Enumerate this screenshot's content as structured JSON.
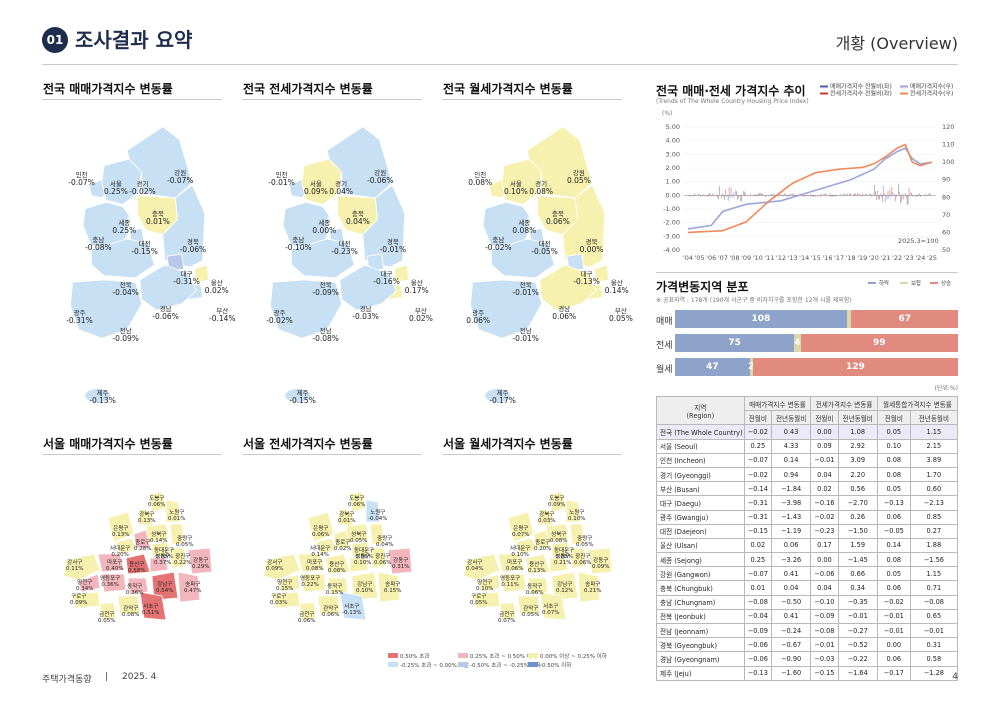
{
  "header": {
    "badge": "01",
    "title": "조사결과 요약",
    "right": "개황 (Overview)"
  },
  "maps": {
    "sale_title": "전국 매매가격지수 변동률",
    "jeonse_title": "전국 전세가격지수 변동률",
    "rent_title": "전국 월세가격지수 변동률",
    "seoul_sale_title": "서울 매매가격지수 변동률",
    "seoul_jeonse_title": "서울 전세가격지수 변동률",
    "seoul_rent_title": "서울 월세가격지수 변동률",
    "sale": [
      {
        "n": "인천",
        "v": "-0.07%"
      },
      {
        "n": "서울",
        "v": "0.25%"
      },
      {
        "n": "경기",
        "v": "-0.02%"
      },
      {
        "n": "강원",
        "v": "-0.07%"
      },
      {
        "n": "세종",
        "v": "0.25%"
      },
      {
        "n": "충북",
        "v": "0.01%"
      },
      {
        "n": "충남",
        "v": "-0.08%"
      },
      {
        "n": "대전",
        "v": "-0.15%"
      },
      {
        "n": "경북",
        "v": "-0.06%"
      },
      {
        "n": "대구",
        "v": "-0.31%"
      },
      {
        "n": "전북",
        "v": "-0.04%"
      },
      {
        "n": "울산",
        "v": "0.02%"
      },
      {
        "n": "부산",
        "v": "-0.14%"
      },
      {
        "n": "경남",
        "v": "-0.06%"
      },
      {
        "n": "광주",
        "v": "-0.31%"
      },
      {
        "n": "전남",
        "v": "-0.09%"
      },
      {
        "n": "제주",
        "v": "-0.13%"
      }
    ],
    "jeonse": [
      {
        "n": "인천",
        "v": "-0.01%"
      },
      {
        "n": "서울",
        "v": "0.09%"
      },
      {
        "n": "경기",
        "v": "0.04%"
      },
      {
        "n": "강원",
        "v": "-0.06%"
      },
      {
        "n": "세종",
        "v": "0.00%"
      },
      {
        "n": "충북",
        "v": "0.04%"
      },
      {
        "n": "충남",
        "v": "-0.10%"
      },
      {
        "n": "대전",
        "v": "-0.23%"
      },
      {
        "n": "경북",
        "v": "-0.01%"
      },
      {
        "n": "대구",
        "v": "-0.16%"
      },
      {
        "n": "전북",
        "v": "-0.09%"
      },
      {
        "n": "울산",
        "v": "0.17%"
      },
      {
        "n": "부산",
        "v": "0.02%"
      },
      {
        "n": "경남",
        "v": "-0.03%"
      },
      {
        "n": "광주",
        "v": "-0.02%"
      },
      {
        "n": "전남",
        "v": "-0.08%"
      },
      {
        "n": "제주",
        "v": "-0.15%"
      }
    ],
    "rent": [
      {
        "n": "인천",
        "v": "0.08%"
      },
      {
        "n": "서울",
        "v": "0.10%"
      },
      {
        "n": "경기",
        "v": "0.08%"
      },
      {
        "n": "강원",
        "v": "0.05%"
      },
      {
        "n": "세종",
        "v": "0.08%"
      },
      {
        "n": "충북",
        "v": "0.06%"
      },
      {
        "n": "충남",
        "v": "-0.02%"
      },
      {
        "n": "대전",
        "v": "-0.05%"
      },
      {
        "n": "경북",
        "v": "0.00%"
      },
      {
        "n": "대구",
        "v": "-0.13%"
      },
      {
        "n": "전북",
        "v": "-0.01%"
      },
      {
        "n": "울산",
        "v": "0.14%"
      },
      {
        "n": "부산",
        "v": "0.05%"
      },
      {
        "n": "경남",
        "v": "0.06%"
      },
      {
        "n": "광주",
        "v": "0.06%"
      },
      {
        "n": "전남",
        "v": "-0.01%"
      },
      {
        "n": "제주",
        "v": "-0.17%"
      }
    ],
    "seoul_sale": [
      {
        "n": "도봉구",
        "v": "0.06%"
      },
      {
        "n": "노원구",
        "v": "0.01%"
      },
      {
        "n": "강북구",
        "v": "0.13%"
      },
      {
        "n": "은평구",
        "v": "0.13%"
      },
      {
        "n": "성북구",
        "v": "0.14%"
      },
      {
        "n": "중랑구",
        "v": "0.05%"
      },
      {
        "n": "서대문구",
        "v": "0.20%"
      },
      {
        "n": "종로구",
        "v": "0.28%"
      },
      {
        "n": "동대문구",
        "v": "0.08%"
      },
      {
        "n": "강서구",
        "v": "0.11%"
      },
      {
        "n": "마포구",
        "v": "0.40%"
      },
      {
        "n": "용산구",
        "v": "0.58%"
      },
      {
        "n": "성동구",
        "v": "0.37%"
      },
      {
        "n": "광진구",
        "v": "0.22%"
      },
      {
        "n": "강동구",
        "v": "0.29%"
      },
      {
        "n": "양천구",
        "v": "0.34%"
      },
      {
        "n": "영등포구",
        "v": "0.36%"
      },
      {
        "n": "동작구",
        "v": "0.36%"
      },
      {
        "n": "강남구",
        "v": "0.54%"
      },
      {
        "n": "송파구",
        "v": "0.47%"
      },
      {
        "n": "구로구",
        "v": "0.09%"
      },
      {
        "n": "금천구",
        "v": "0.05%"
      },
      {
        "n": "관악구",
        "v": "0.08%"
      },
      {
        "n": "서초구",
        "v": "0.51%"
      }
    ],
    "seoul_jeonse": [
      {
        "n": "도봉구",
        "v": "0.06%"
      },
      {
        "n": "노원구",
        "v": "-0.04%"
      },
      {
        "n": "강북구",
        "v": "0.01%"
      },
      {
        "n": "은평구",
        "v": "0.06%"
      },
      {
        "n": "성북구",
        "v": "0.05%"
      },
      {
        "n": "중랑구",
        "v": "0.04%"
      },
      {
        "n": "서대문구",
        "v": "0.14%"
      },
      {
        "n": "종로구",
        "v": "0.02%"
      },
      {
        "n": "동대문구",
        "v": "0.06%"
      },
      {
        "n": "강서구",
        "v": "0.09%"
      },
      {
        "n": "마포구",
        "v": "0.08%"
      },
      {
        "n": "용산구",
        "v": "0.08%"
      },
      {
        "n": "성동구",
        "v": "0.10%"
      },
      {
        "n": "광진구",
        "v": "0.06%"
      },
      {
        "n": "강동구",
        "v": "0.31%"
      },
      {
        "n": "양천구",
        "v": "0.15%"
      },
      {
        "n": "영등포구",
        "v": "0.22%"
      },
      {
        "n": "동작구",
        "v": "0.15%"
      },
      {
        "n": "강남구",
        "v": "0.10%"
      },
      {
        "n": "송파구",
        "v": "0.15%"
      },
      {
        "n": "구로구",
        "v": "0.03%"
      },
      {
        "n": "금천구",
        "v": "0.06%"
      },
      {
        "n": "관악구",
        "v": "0.06%"
      },
      {
        "n": "서초구",
        "v": "-0.13%"
      }
    ],
    "seoul_rent": [
      {
        "n": "도봉구",
        "v": "0.09%"
      },
      {
        "n": "노원구",
        "v": "0.10%"
      },
      {
        "n": "강북구",
        "v": "0.03%"
      },
      {
        "n": "은평구",
        "v": "0.07%"
      },
      {
        "n": "성북구",
        "v": "0.08%"
      },
      {
        "n": "중랑구",
        "v": "0.05%"
      },
      {
        "n": "서대문구",
        "v": "0.10%"
      },
      {
        "n": "종로구",
        "v": "0.20%"
      },
      {
        "n": "동대문구",
        "v": "0.08%"
      },
      {
        "n": "강서구",
        "v": "0.04%"
      },
      {
        "n": "마포구",
        "v": "0.06%"
      },
      {
        "n": "용산구",
        "v": "0.13%"
      },
      {
        "n": "성동구",
        "v": "0.21%"
      },
      {
        "n": "광진구",
        "v": "0.06%"
      },
      {
        "n": "강동구",
        "v": "0.09%"
      },
      {
        "n": "양천구",
        "v": "0.10%"
      },
      {
        "n": "영등포구",
        "v": "0.11%"
      },
      {
        "n": "동작구",
        "v": "0.06%"
      },
      {
        "n": "강남구",
        "v": "0.12%"
      },
      {
        "n": "송파구",
        "v": "0.21%"
      },
      {
        "n": "구로구",
        "v": "0.05%"
      },
      {
        "n": "금천구",
        "v": "0.07%"
      },
      {
        "n": "관악구",
        "v": "0.05%"
      },
      {
        "n": "서초구",
        "v": "0.07%"
      }
    ],
    "legend": [
      "0.50% 초과",
      "0.25% 초과 ~ 0.50% 이하",
      "0.00% 이상 ~ 0.25% 이하",
      "-0.25% 초과 ~ 0.00% 미만",
      "-0.50% 초과 ~ -0.25% 이하",
      "-0.50% 이하"
    ],
    "legend_colors": [
      "#e57373",
      "#f4b6bd",
      "#f6f1ae",
      "#c8e0f4",
      "#b9c8ea",
      "#6f93d0"
    ]
  },
  "trend": {
    "title": "전국 매매·전세 가격지수 추이",
    "subtitle": "(Trends of The Whole Country Housing Price Index)",
    "unit": "(%)",
    "note": "2025.3=100",
    "legend": [
      "매매가격지수 전월비(좌)",
      "매매가격지수(우)",
      "전세가격지수 전월비(좌)",
      "전세가격지수(우)"
    ],
    "colors": [
      "#4a5ea8",
      "#9aa6dc",
      "#c0392b",
      "#f08a5d"
    ],
    "left_ticks": [
      "5.00",
      "4.00",
      "3.00",
      "2.00",
      "1.00",
      "0.00",
      "-1.00",
      "-2.00",
      "-3.00",
      "-4.00"
    ],
    "right_ticks": [
      "120",
      "110",
      "100",
      "90",
      "80",
      "70",
      "60",
      "50"
    ],
    "x_ticks": [
      "'04",
      "'05",
      "'06",
      "'07",
      "'08",
      "'09",
      "'10",
      "'11",
      "'12",
      "'13",
      "'14",
      "'15",
      "'16",
      "'17",
      "'18",
      "'19",
      "'20",
      "'21",
      "'22",
      "'23",
      "'24",
      "'25"
    ]
  },
  "distribution": {
    "title": "가격변동지역 분포",
    "note": "※ 공표지역 : 178개 (190개 시군구 중 비자치구를 포함한 12개 시를 제외함)",
    "legend": [
      "하락",
      "보합",
      "상승"
    ],
    "colors": [
      "#8ea3c9",
      "#d8d8a8",
      "#e08a80"
    ],
    "rows": [
      {
        "label": "매매",
        "down": 108,
        "flat": 3,
        "up": 67,
        "down_t": "108",
        "flat_t": "",
        "up_t": "67"
      },
      {
        "label": "전세",
        "down": 75,
        "flat": 4,
        "up": 99,
        "down_t": "75",
        "flat_t": "4",
        "up_t": "99"
      },
      {
        "label": "월세",
        "down": 47,
        "flat": 2,
        "up": 129,
        "down_t": "47",
        "flat_t": "2",
        "up_t": "129"
      }
    ],
    "unit": "(단위:%)"
  },
  "table": {
    "h_region": "지역",
    "h_region_en": "(Region)",
    "h_sale": "매매가격지수 변동률",
    "h_jeonse": "전세가격지수 변동률",
    "h_rent": "월세통합가격지수 변동률",
    "h_mom": "전월비",
    "h_yoy": "전년동월비",
    "rows": [
      [
        "전국 (The Whole Country)",
        "−0.02",
        "0.43",
        "0.00",
        "1.08",
        "0.05",
        "1.15"
      ],
      [
        "서울 (Seoul)",
        "0.25",
        "4.33",
        "0.09",
        "2.92",
        "0.10",
        "2.15"
      ],
      [
        "인천 (Incheon)",
        "−0.07",
        "0.14",
        "−0.01",
        "3.09",
        "0.08",
        "3.89"
      ],
      [
        "경기 (Gyeonggi)",
        "−0.02",
        "0.94",
        "0.04",
        "2.20",
        "0.08",
        "1.70"
      ],
      [
        "부산 (Busan)",
        "−0.14",
        "−1.84",
        "0.02",
        "0.56",
        "0.05",
        "0.60"
      ],
      [
        "대구 (Daegu)",
        "−0.31",
        "−3.98",
        "−0.16",
        "−2.70",
        "−0.13",
        "−2.13"
      ],
      [
        "광주 (Gwangju)",
        "−0.31",
        "−1.43",
        "−0.02",
        "0.26",
        "0.06",
        "0.85"
      ],
      [
        "대전 (Daejeon)",
        "−0.15",
        "−1.19",
        "−0.23",
        "−1.50",
        "−0.05",
        "0.27"
      ],
      [
        "울산 (Ulsan)",
        "0.02",
        "0.06",
        "0.17",
        "1.59",
        "0.14",
        "1.88"
      ],
      [
        "세종 (Sejong)",
        "0.25",
        "−3.26",
        "0.00",
        "−1.45",
        "0.08",
        "−1.56"
      ],
      [
        "강원 (Gangwon)",
        "−0.07",
        "0.41",
        "−0.06",
        "0.66",
        "0.05",
        "1.15"
      ],
      [
        "충북 (Chungbuk)",
        "0.01",
        "0.04",
        "0.04",
        "0.34",
        "0.06",
        "0.71"
      ],
      [
        "충남 (Chungnam)",
        "−0.08",
        "−0.50",
        "−0.10",
        "−0.35",
        "−0.02",
        "−0.08"
      ],
      [
        "전북 (Jeonbuk)",
        "−0.04",
        "0.41",
        "−0.09",
        "−0.01",
        "−0.01",
        "0.65"
      ],
      [
        "전남 (Jeonnam)",
        "−0.09",
        "−0.24",
        "−0.08",
        "−0.27",
        "−0.01",
        "−0.01"
      ],
      [
        "경북 (Gyeongbuk)",
        "−0.06",
        "−0.67",
        "−0.01",
        "−0.52",
        "0.00",
        "0.31"
      ],
      [
        "경남 (Gyeongnam)",
        "−0.06",
        "−0.90",
        "−0.03",
        "−0.22",
        "0.06",
        "0.58"
      ],
      [
        "제주 (Jeju)",
        "−0.13",
        "−1.60",
        "−0.15",
        "−1.64",
        "−0.17",
        "−1.28"
      ]
    ]
  },
  "footer": {
    "left": "주택가격동향",
    "sep": "|",
    "date": "2025. 4",
    "page": "4"
  }
}
